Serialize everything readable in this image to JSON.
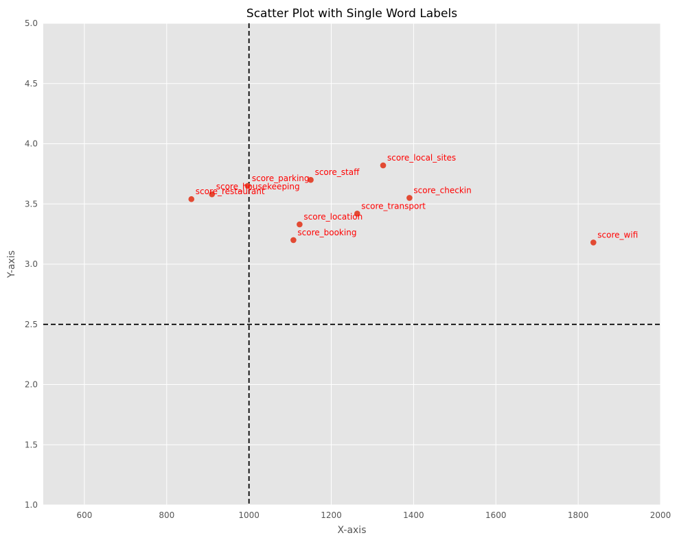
{
  "chart_data": {
    "type": "scatter",
    "title": "Scatter Plot with Single Word Labels",
    "xlabel": "X-axis",
    "ylabel": "Y-axis",
    "xlim": [
      500,
      2000
    ],
    "ylim": [
      1.0,
      5.0
    ],
    "x_ticks": [
      600,
      800,
      1000,
      1200,
      1400,
      1600,
      1800,
      2000
    ],
    "y_ticks": [
      "1.0",
      "1.5",
      "2.0",
      "2.5",
      "3.0",
      "3.5",
      "4.0",
      "4.5",
      "5.0"
    ],
    "grid": true,
    "reference_lines": {
      "x": 1000,
      "y": 2.5
    },
    "colors": {
      "point": "#E24A33",
      "label": "#FF0000",
      "background": "#E5E5E5",
      "grid": "#FFFFFF",
      "ref_line": "#000000"
    },
    "points": [
      {
        "label": "score_restaurant",
        "x": 860,
        "y": 3.54
      },
      {
        "label": "score_housekeeping",
        "x": 910,
        "y": 3.58
      },
      {
        "label": "score_parking",
        "x": 997,
        "y": 3.65
      },
      {
        "label": "score_staff",
        "x": 1150,
        "y": 3.7
      },
      {
        "label": "score_local_sites",
        "x": 1326,
        "y": 3.82
      },
      {
        "label": "score_checkin",
        "x": 1390,
        "y": 3.55
      },
      {
        "label": "score_transport",
        "x": 1263,
        "y": 3.42
      },
      {
        "label": "score_location",
        "x": 1123,
        "y": 3.33
      },
      {
        "label": "score_booking",
        "x": 1108,
        "y": 3.2
      },
      {
        "label": "score_wifi",
        "x": 1837,
        "y": 3.18
      }
    ]
  }
}
